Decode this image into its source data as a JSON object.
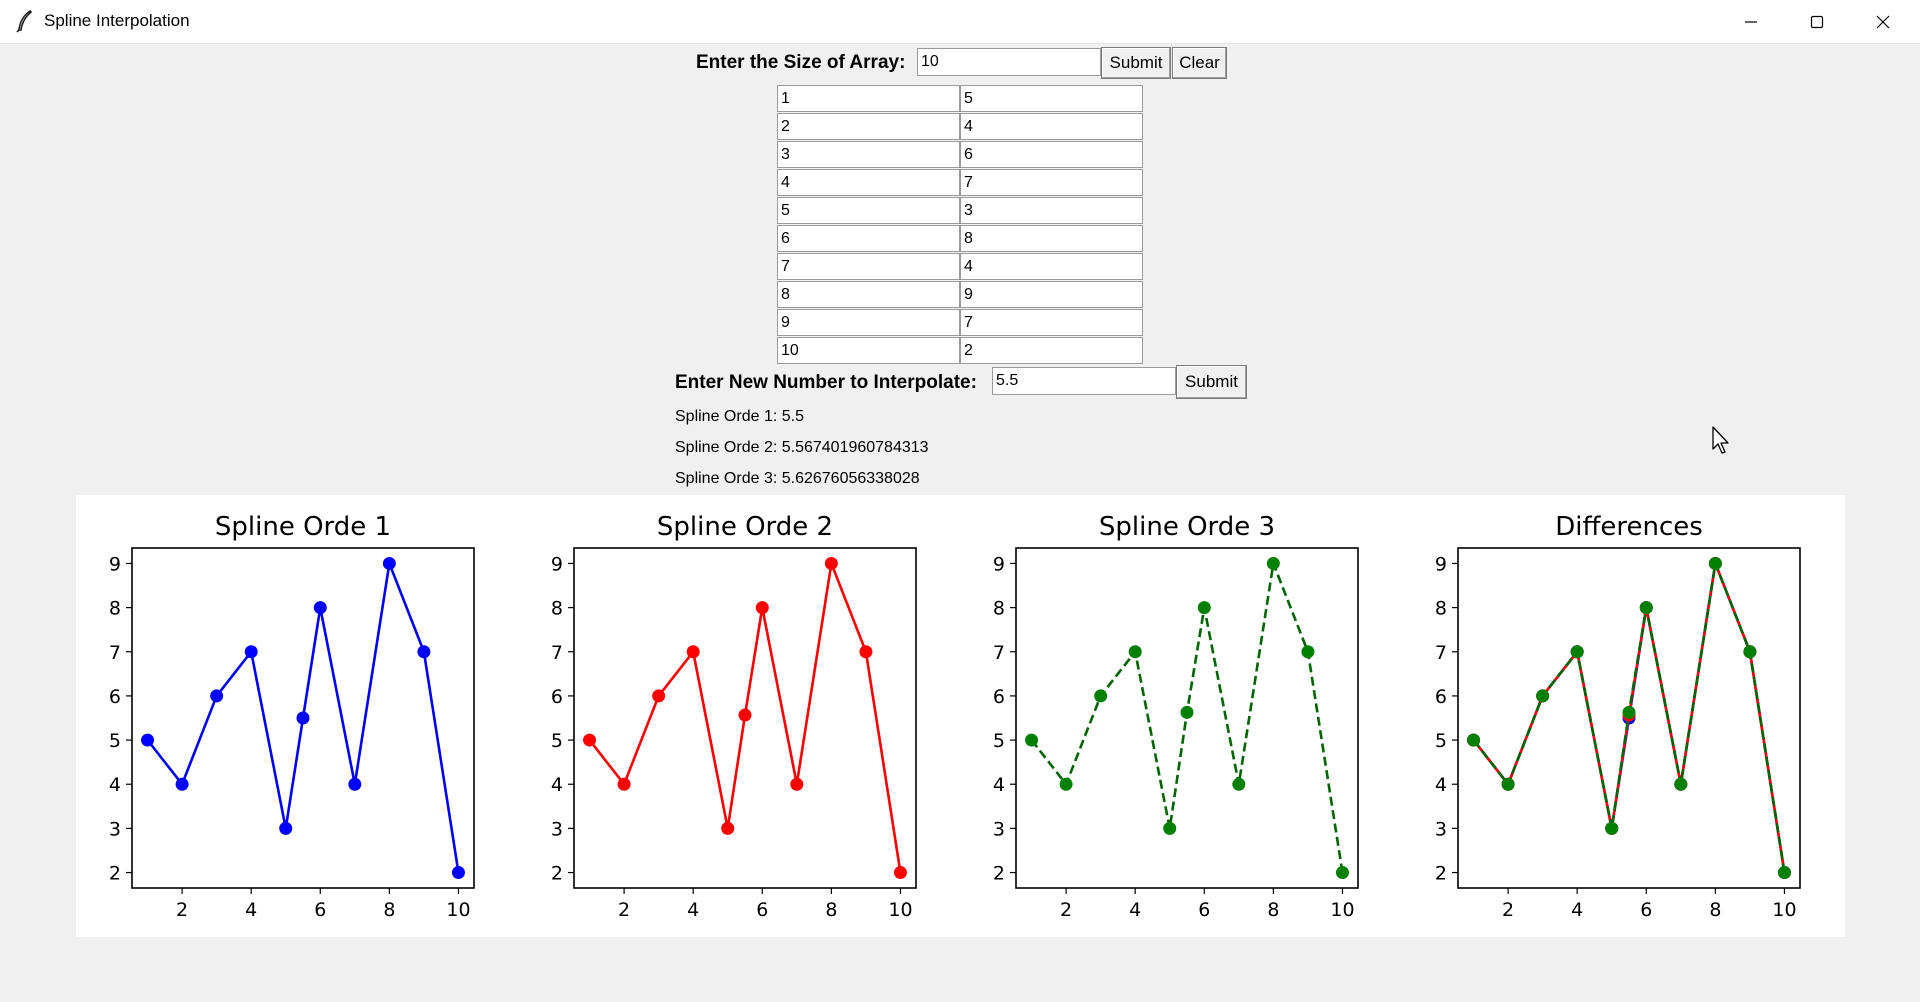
{
  "window": {
    "title": "Spline Interpolation"
  },
  "size_section": {
    "label": "Enter the Size of Array:",
    "value": "10",
    "submit_label": "Submit",
    "clear_label": "Clear"
  },
  "array": {
    "x": [
      "1",
      "2",
      "3",
      "4",
      "5",
      "6",
      "7",
      "8",
      "9",
      "10"
    ],
    "y": [
      "5",
      "4",
      "6",
      "7",
      "3",
      "8",
      "4",
      "9",
      "7",
      "2"
    ]
  },
  "interp_section": {
    "label": "Enter New Number to Interpolate:",
    "value": "5.5",
    "submit_label": "Submit"
  },
  "results": [
    "Spline Orde 1: 5.5",
    "Spline Orde 2: 5.567401960784313",
    "Spline Orde 3: 5.62676056338028"
  ],
  "chart_data": [
    {
      "type": "line",
      "title": "Spline Orde 1",
      "x": [
        1,
        2,
        3,
        4,
        5,
        5.5,
        6,
        7,
        8,
        9,
        10
      ],
      "y": [
        5,
        4,
        6,
        7,
        3,
        5.5,
        8,
        4,
        9,
        7,
        2
      ],
      "series": [
        {
          "color": "#0000ff",
          "style": "solid",
          "marker": "circle"
        }
      ],
      "xticks": [
        2,
        4,
        6,
        8,
        10
      ],
      "yticks": [
        2,
        3,
        4,
        5,
        6,
        7,
        8,
        9
      ],
      "xlim": [
        0.55,
        10.45
      ],
      "ylim": [
        1.65,
        9.35
      ]
    },
    {
      "type": "line",
      "title": "Spline Orde 2",
      "x": [
        1,
        2,
        3,
        4,
        5,
        5.5,
        6,
        7,
        8,
        9,
        10
      ],
      "y": [
        5,
        4,
        6,
        7,
        3,
        5.567,
        8,
        4,
        9,
        7,
        2
      ],
      "series": [
        {
          "color": "#ff0000",
          "style": "solid",
          "marker": "circle"
        }
      ],
      "xticks": [
        2,
        4,
        6,
        8,
        10
      ],
      "yticks": [
        2,
        3,
        4,
        5,
        6,
        7,
        8,
        9
      ],
      "xlim": [
        0.55,
        10.45
      ],
      "ylim": [
        1.65,
        9.35
      ]
    },
    {
      "type": "line",
      "title": "Spline Orde 3",
      "x": [
        1,
        2,
        3,
        4,
        5,
        5.5,
        6,
        7,
        8,
        9,
        10
      ],
      "y": [
        5,
        4,
        6,
        7,
        3,
        5.627,
        8,
        4,
        9,
        7,
        2
      ],
      "series": [
        {
          "color": "#006400",
          "style": "dashed",
          "marker": "circle",
          "marker_color": "#008000"
        }
      ],
      "xticks": [
        2,
        4,
        6,
        8,
        10
      ],
      "yticks": [
        2,
        3,
        4,
        5,
        6,
        7,
        8,
        9
      ],
      "xlim": [
        0.55,
        10.45
      ],
      "ylim": [
        1.65,
        9.35
      ]
    },
    {
      "type": "line",
      "title": "Differences",
      "x": [
        1,
        2,
        3,
        4,
        5,
        5.5,
        6,
        7,
        8,
        9,
        10
      ],
      "series": [
        {
          "y": [
            5,
            4,
            6,
            7,
            3,
            5.5,
            8,
            4,
            9,
            7,
            2
          ],
          "color": "#0000ff",
          "style": "solid",
          "marker": "circle"
        },
        {
          "y": [
            5,
            4,
            6,
            7,
            3,
            5.567,
            8,
            4,
            9,
            7,
            2
          ],
          "color": "#ff0000",
          "style": "solid",
          "marker": "circle"
        },
        {
          "y": [
            5,
            4,
            6,
            7,
            3,
            5.627,
            8,
            4,
            9,
            7,
            2
          ],
          "color": "#006400",
          "style": "dashed",
          "marker": "circle",
          "marker_color": "#008000"
        }
      ],
      "xticks": [
        2,
        4,
        6,
        8,
        10
      ],
      "yticks": [
        2,
        3,
        4,
        5,
        6,
        7,
        8,
        9
      ],
      "xlim": [
        0.55,
        10.45
      ],
      "ylim": [
        1.65,
        9.35
      ]
    }
  ]
}
